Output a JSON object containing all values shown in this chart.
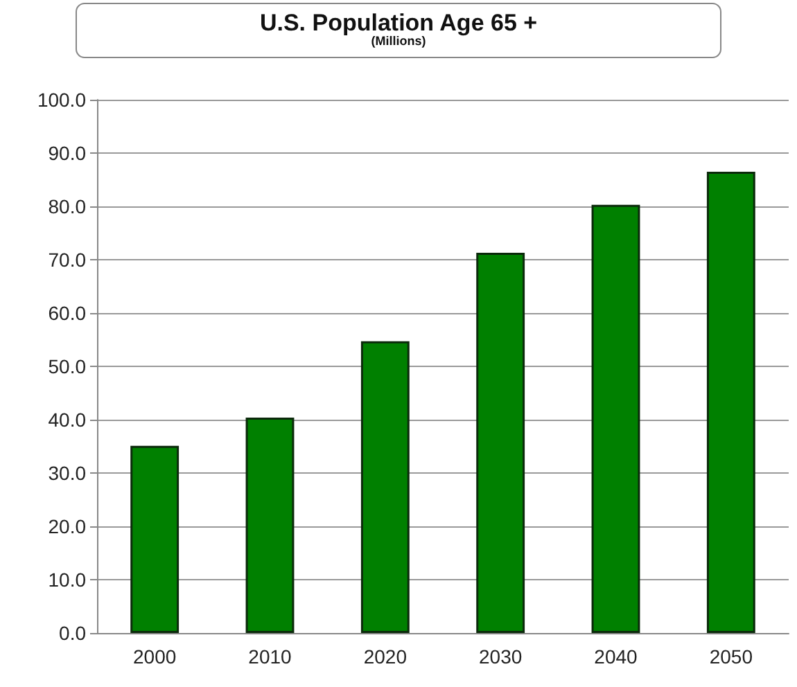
{
  "chart_data": {
    "type": "bar",
    "title": "U.S. Population Age 65 +",
    "subtitle": "(Millions)",
    "categories": [
      "2000",
      "2010",
      "2020",
      "2030",
      "2040",
      "2050"
    ],
    "values": [
      35.1,
      40.4,
      54.7,
      71.3,
      80.3,
      86.5
    ],
    "color": "#008000",
    "ylim": [
      0,
      100
    ],
    "yticks": [
      {
        "value": 0,
        "label": "0.0"
      },
      {
        "value": 10,
        "label": "10.0"
      },
      {
        "value": 20,
        "label": "20.0"
      },
      {
        "value": 30,
        "label": "30.0"
      },
      {
        "value": 40,
        "label": "40.0"
      },
      {
        "value": 50,
        "label": "50.0"
      },
      {
        "value": 60,
        "label": "60.0"
      },
      {
        "value": 70,
        "label": "70.0"
      },
      {
        "value": 80,
        "label": "80.0"
      },
      {
        "value": 90,
        "label": "90.0"
      },
      {
        "value": 100,
        "label": "100.0"
      }
    ],
    "grid": "y"
  }
}
